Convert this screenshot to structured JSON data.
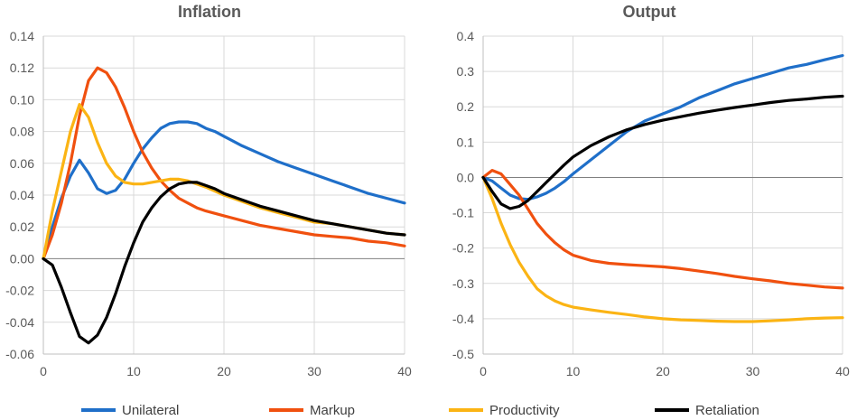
{
  "legend": [
    {
      "name": "Unilateral",
      "color": "#1f6fc9"
    },
    {
      "name": "Markup",
      "color": "#f0500f"
    },
    {
      "name": "Productivity",
      "color": "#fbb414"
    },
    {
      "name": "Retaliation",
      "color": "#000000"
    }
  ],
  "chart_data": [
    {
      "type": "line",
      "title": "Inflation",
      "xlabel": "",
      "ylabel": "",
      "xlim": [
        0,
        40
      ],
      "ylim": [
        -0.06,
        0.14
      ],
      "xticks": [
        0,
        10,
        20,
        30,
        40
      ],
      "yticks": [
        -0.06,
        -0.04,
        -0.02,
        0.0,
        0.02,
        0.04,
        0.06,
        0.08,
        0.1,
        0.12,
        0.14
      ],
      "ytick_labels": [
        "-0.06",
        "-0.04",
        "-0.02",
        "0.00",
        "0.02",
        "0.04",
        "0.06",
        "0.08",
        "0.10",
        "0.12",
        "0.14"
      ],
      "grid": true,
      "series": [
        {
          "name": "Unilateral",
          "color": "#1f6fc9",
          "x": [
            0,
            1,
            2,
            3,
            4,
            5,
            6,
            7,
            8,
            9,
            10,
            11,
            12,
            13,
            14,
            15,
            16,
            17,
            18,
            19,
            20,
            22,
            24,
            26,
            28,
            30,
            32,
            34,
            36,
            38,
            40
          ],
          "y": [
            0.0,
            0.02,
            0.038,
            0.052,
            0.062,
            0.054,
            0.044,
            0.041,
            0.043,
            0.05,
            0.06,
            0.069,
            0.076,
            0.082,
            0.085,
            0.086,
            0.086,
            0.085,
            0.082,
            0.08,
            0.077,
            0.071,
            0.066,
            0.061,
            0.057,
            0.053,
            0.049,
            0.045,
            0.041,
            0.038,
            0.035
          ]
        },
        {
          "name": "Markup",
          "color": "#f0500f",
          "x": [
            0,
            1,
            2,
            3,
            4,
            5,
            6,
            7,
            8,
            9,
            10,
            11,
            12,
            13,
            14,
            15,
            16,
            17,
            18,
            20,
            22,
            24,
            26,
            28,
            30,
            32,
            34,
            36,
            38,
            40
          ],
          "y": [
            0.0,
            0.015,
            0.035,
            0.06,
            0.09,
            0.112,
            0.12,
            0.117,
            0.108,
            0.095,
            0.08,
            0.067,
            0.057,
            0.049,
            0.043,
            0.038,
            0.035,
            0.032,
            0.03,
            0.027,
            0.024,
            0.021,
            0.019,
            0.017,
            0.015,
            0.014,
            0.013,
            0.011,
            0.01,
            0.008
          ]
        },
        {
          "name": "Productivity",
          "color": "#fbb414",
          "x": [
            0,
            1,
            2,
            3,
            4,
            5,
            6,
            7,
            8,
            9,
            10,
            11,
            12,
            13,
            14,
            15,
            16,
            17,
            18,
            20,
            22,
            24,
            26,
            28,
            30,
            32,
            34,
            36,
            38,
            40
          ],
          "y": [
            0.0,
            0.03,
            0.055,
            0.08,
            0.097,
            0.089,
            0.073,
            0.06,
            0.052,
            0.048,
            0.047,
            0.047,
            0.048,
            0.049,
            0.05,
            0.05,
            0.049,
            0.047,
            0.045,
            0.04,
            0.036,
            0.032,
            0.029,
            0.026,
            0.023,
            0.022,
            0.02,
            0.018,
            0.016,
            0.015
          ]
        },
        {
          "name": "Retaliation",
          "color": "#000000",
          "x": [
            0,
            1,
            2,
            3,
            4,
            5,
            6,
            7,
            8,
            9,
            10,
            11,
            12,
            13,
            14,
            15,
            16,
            17,
            18,
            19,
            20,
            22,
            24,
            26,
            28,
            30,
            32,
            34,
            36,
            38,
            40
          ],
          "y": [
            0.0,
            -0.004,
            -0.018,
            -0.034,
            -0.049,
            -0.053,
            -0.048,
            -0.037,
            -0.022,
            -0.005,
            0.01,
            0.023,
            0.032,
            0.039,
            0.044,
            0.047,
            0.048,
            0.048,
            0.046,
            0.044,
            0.041,
            0.037,
            0.033,
            0.03,
            0.027,
            0.024,
            0.022,
            0.02,
            0.018,
            0.016,
            0.015
          ]
        }
      ]
    },
    {
      "type": "line",
      "title": "Output",
      "xlabel": "",
      "ylabel": "",
      "xlim": [
        0,
        40
      ],
      "ylim": [
        -0.5,
        0.4
      ],
      "xticks": [
        0,
        10,
        20,
        30,
        40
      ],
      "yticks": [
        -0.5,
        -0.4,
        -0.3,
        -0.2,
        -0.1,
        0.0,
        0.1,
        0.2,
        0.3,
        0.4
      ],
      "ytick_labels": [
        "-0.5",
        "-0.4",
        "-0.3",
        "-0.2",
        "-0.1",
        "0.0",
        "0.1",
        "0.2",
        "0.3",
        "0.4"
      ],
      "grid": true,
      "series": [
        {
          "name": "Unilateral",
          "color": "#1f6fc9",
          "x": [
            0,
            1,
            2,
            3,
            4,
            5,
            6,
            7,
            8,
            9,
            10,
            12,
            14,
            16,
            18,
            20,
            22,
            24,
            26,
            28,
            30,
            32,
            34,
            36,
            38,
            40
          ],
          "y": [
            0.0,
            -0.01,
            -0.03,
            -0.05,
            -0.06,
            -0.062,
            -0.055,
            -0.045,
            -0.03,
            -0.012,
            0.01,
            0.05,
            0.09,
            0.13,
            0.16,
            0.18,
            0.2,
            0.225,
            0.245,
            0.265,
            0.28,
            0.295,
            0.31,
            0.32,
            0.333,
            0.345
          ]
        },
        {
          "name": "Markup",
          "color": "#f0500f",
          "x": [
            0,
            1,
            2,
            3,
            4,
            5,
            6,
            7,
            8,
            9,
            10,
            12,
            14,
            16,
            18,
            20,
            22,
            24,
            26,
            28,
            30,
            32,
            34,
            36,
            38,
            40
          ],
          "y": [
            0.0,
            0.02,
            0.01,
            -0.02,
            -0.05,
            -0.09,
            -0.13,
            -0.16,
            -0.185,
            -0.205,
            -0.22,
            -0.235,
            -0.243,
            -0.247,
            -0.25,
            -0.253,
            -0.258,
            -0.265,
            -0.272,
            -0.28,
            -0.287,
            -0.293,
            -0.3,
            -0.305,
            -0.31,
            -0.313
          ]
        },
        {
          "name": "Productivity",
          "color": "#fbb414",
          "x": [
            0,
            1,
            2,
            3,
            4,
            5,
            6,
            7,
            8,
            9,
            10,
            12,
            14,
            16,
            18,
            20,
            22,
            24,
            26,
            28,
            30,
            32,
            34,
            36,
            38,
            40
          ],
          "y": [
            0.0,
            -0.06,
            -0.13,
            -0.19,
            -0.24,
            -0.28,
            -0.315,
            -0.335,
            -0.35,
            -0.36,
            -0.367,
            -0.375,
            -0.382,
            -0.388,
            -0.395,
            -0.4,
            -0.403,
            -0.405,
            -0.407,
            -0.408,
            -0.408,
            -0.406,
            -0.403,
            -0.4,
            -0.398,
            -0.397
          ]
        },
        {
          "name": "Retaliation",
          "color": "#000000",
          "x": [
            0,
            1,
            2,
            3,
            4,
            5,
            6,
            7,
            8,
            9,
            10,
            12,
            14,
            16,
            18,
            20,
            22,
            24,
            26,
            28,
            30,
            32,
            34,
            36,
            38,
            40
          ],
          "y": [
            0.0,
            -0.04,
            -0.075,
            -0.088,
            -0.082,
            -0.065,
            -0.04,
            -0.015,
            0.01,
            0.035,
            0.058,
            0.09,
            0.115,
            0.135,
            0.15,
            0.162,
            0.172,
            0.182,
            0.19,
            0.198,
            0.205,
            0.212,
            0.218,
            0.222,
            0.227,
            0.23
          ]
        }
      ]
    }
  ]
}
